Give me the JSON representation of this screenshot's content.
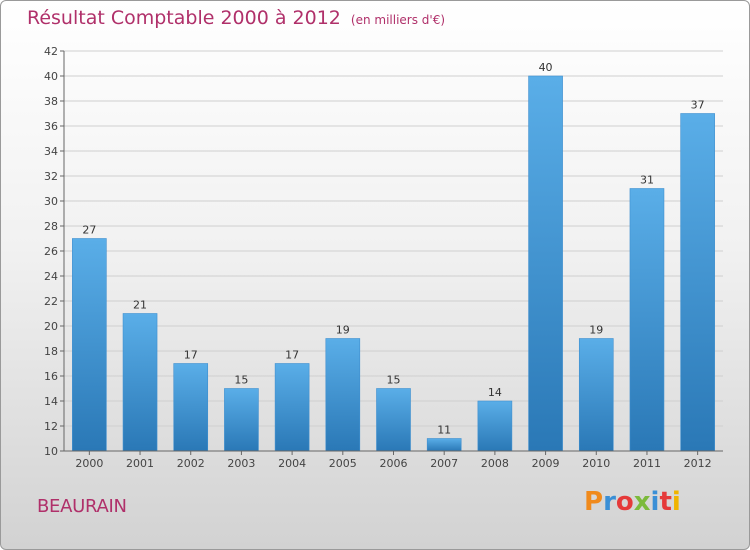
{
  "header": {
    "title": "Résultat Comptable 2000 à 2012",
    "unit": "(en milliers d'€)"
  },
  "footer": {
    "commune": "BEAURAIN",
    "logo": "Proxiti",
    "logo_colors": [
      "#f08a1c",
      "#3a8fd6",
      "#e53a3a",
      "#7cba3b",
      "#3a8fd6",
      "#e53a3a",
      "#f0b400"
    ]
  },
  "chart_data": {
    "type": "bar",
    "title": "Résultat Comptable 2000 à 2012",
    "subtitle": "(en milliers d'€)",
    "xlabel": "",
    "ylabel": "",
    "categories": [
      "2000",
      "2001",
      "2002",
      "2003",
      "2004",
      "2005",
      "2006",
      "2007",
      "2008",
      "2009",
      "2010",
      "2011",
      "2012"
    ],
    "values": [
      27,
      21,
      17,
      15,
      17,
      19,
      15,
      11,
      14,
      40,
      19,
      31,
      37
    ],
    "ylim": [
      10,
      42
    ],
    "yticks": [
      10,
      12,
      14,
      16,
      18,
      20,
      22,
      24,
      26,
      28,
      30,
      32,
      34,
      36,
      38,
      40,
      42
    ],
    "grid": true,
    "bar_color_top": "#5aaee8",
    "bar_color_bottom": "#2a78b6"
  }
}
